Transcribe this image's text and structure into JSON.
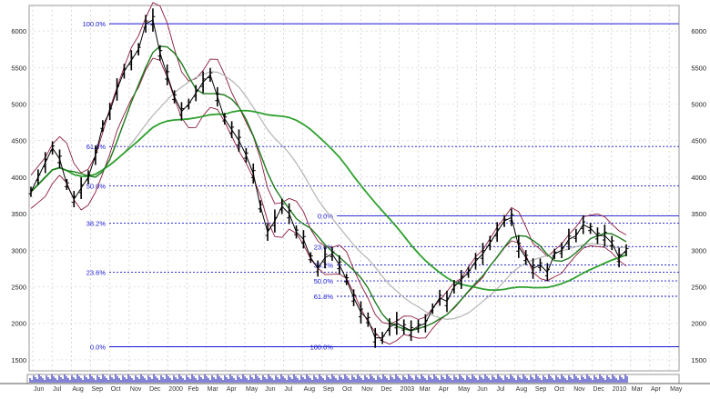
{
  "chart_data": {
    "type": "line",
    "title": "",
    "xlabel": "",
    "ylabel": "",
    "ylim": [
      1350,
      6350
    ],
    "y_ticks": [
      1500,
      2000,
      2500,
      3000,
      3500,
      4000,
      4500,
      5000,
      5500,
      6000
    ],
    "y_tick_labels": [
      "1500",
      "2000",
      "2500",
      "3000",
      "3500",
      "4000",
      "4500",
      "5000",
      "5500",
      "6000"
    ],
    "x_month_labels": [
      "Jun",
      "Jul",
      "Aug",
      "Sep",
      "Oct",
      "Nov",
      "Dec",
      "2000",
      "Feb",
      "Mar",
      "Apr",
      "May",
      "Jun",
      "Jul",
      "Aug",
      "Sep",
      "Oct",
      "Nov",
      "Dec",
      "2003",
      "Mar",
      "Apr",
      "May",
      "Jun",
      "Jul",
      "Aug",
      "Sep",
      "Oct",
      "Nov",
      "Dec",
      "2010",
      "Mar",
      "Apr",
      "May"
    ],
    "grid": true,
    "colors": {
      "price": "#000000",
      "envelope": "#8b1a3a",
      "ma_short": "#1d7a1d",
      "ma_long": "#2ea02e",
      "ma_mid": "#b4b4b4",
      "fib": "#1414d2",
      "volume": "#1e1eb4"
    },
    "retracement_set_1": [
      {
        "label": "100.0%",
        "value": 6100
      },
      {
        "label": "61.8%",
        "value": 4420
      },
      {
        "label": "50.0%",
        "value": 3880
      },
      {
        "label": "38.2%",
        "value": 3370
      },
      {
        "label": "23.6%",
        "value": 2700
      },
      {
        "label": "0.0%",
        "value": 1680
      }
    ],
    "retracement_set_2": [
      {
        "label": "0.0%",
        "value": 3470
      },
      {
        "label": "23.6%",
        "value": 3050
      },
      {
        "label": "38.2%",
        "value": 2800
      },
      {
        "label": "50.0%",
        "value": 2580
      },
      {
        "label": "61.8%",
        "value": 2370
      },
      {
        "label": "100.0%",
        "value": 1680
      }
    ],
    "series": [
      {
        "values": [
          3800,
          4000,
          4200,
          4400,
          4250,
          3900,
          3700,
          3850,
          4000,
          4300,
          4700,
          4900,
          5200,
          5450,
          5600,
          5750,
          6100,
          6150,
          5700,
          5400,
          5100,
          4900,
          5000,
          5150,
          5300,
          5400,
          5100,
          4800,
          4650,
          4500,
          4300,
          4050,
          3600,
          3250,
          3400,
          3600,
          3500,
          3250,
          3150,
          2900,
          2750,
          2900,
          2950,
          2800,
          2600,
          2350,
          2150,
          2050,
          1800,
          1800,
          1950,
          2000,
          1950,
          1900,
          1960,
          2000,
          2200,
          2350,
          2300,
          2500,
          2600,
          2700,
          2850,
          2950,
          3100,
          3250,
          3400,
          3450,
          3050,
          2900,
          2750,
          2800,
          2700,
          2950,
          3000,
          3150,
          3200,
          3350,
          3300,
          3200,
          3200,
          3100,
          2900,
          3000
        ]
      }
    ]
  }
}
